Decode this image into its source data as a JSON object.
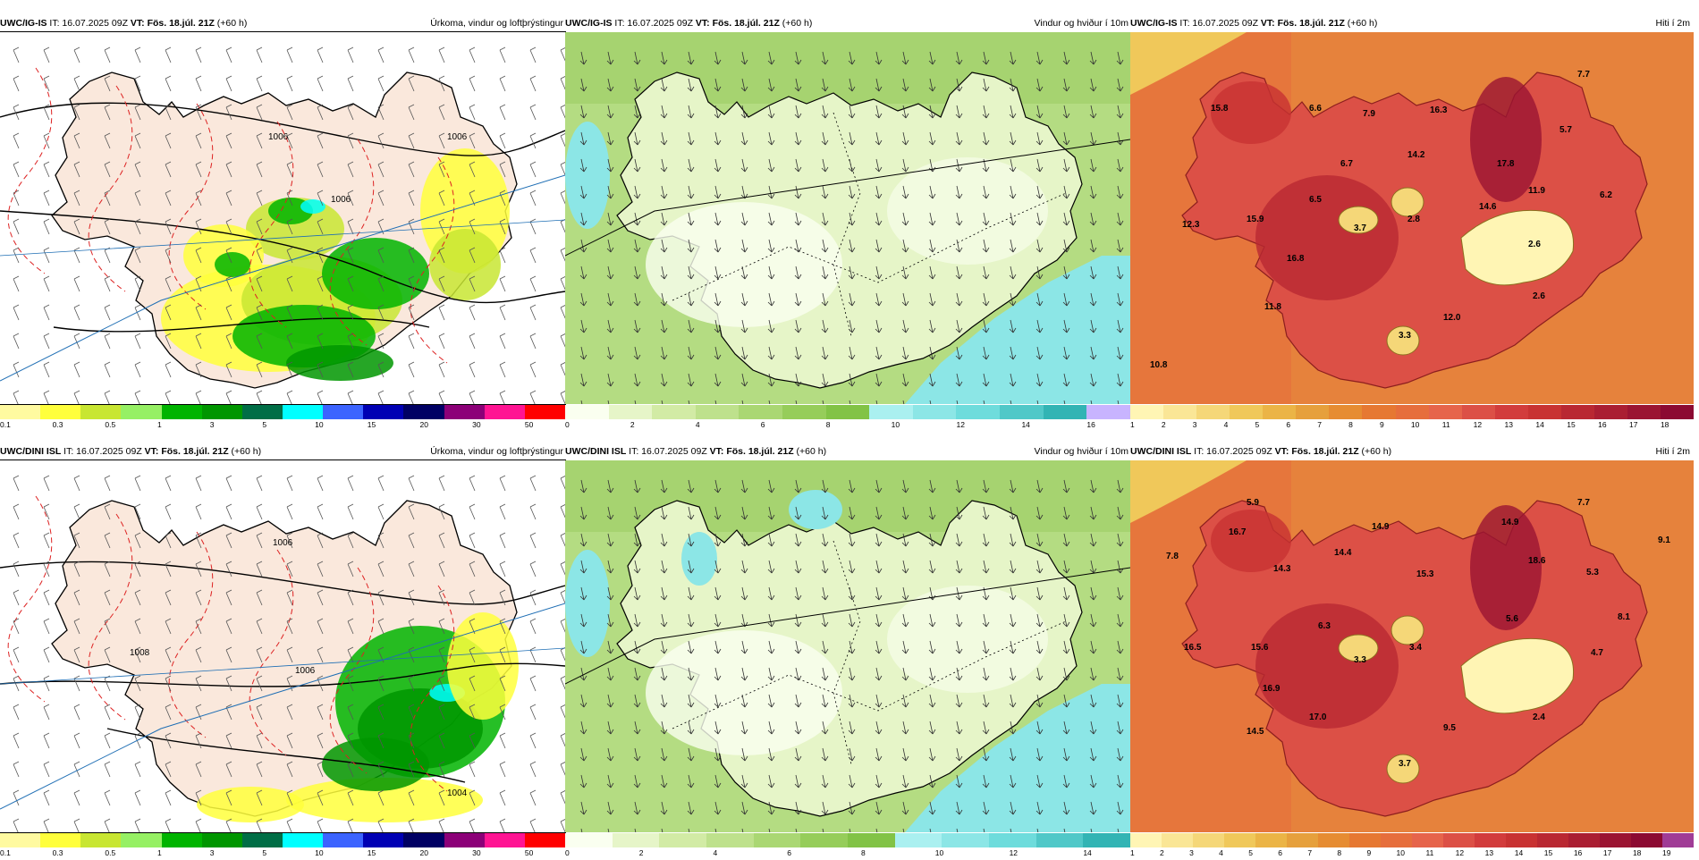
{
  "rows": [
    {
      "model": "UWC/IG-IS",
      "it": "IT: 16.07.2025 09Z",
      "vt": "VT: Fös. 18.júl. 21Z",
      "lead": "(+60 h)",
      "temp_labels": [
        "15.8",
        "6.6",
        "7.9",
        "16.3",
        "7.7",
        "14.2",
        "6.7",
        "5.7",
        "17.8",
        "11.9",
        "6.2",
        "6.5",
        "14.6",
        "12.3",
        "15.9",
        "3.7",
        "2.8",
        "2.6",
        "16.8",
        "2.6",
        "11.8",
        "12.0",
        "3.3",
        "10.8"
      ],
      "precip_isobar_labels": [
        "1006",
        "1006",
        "1006"
      ]
    },
    {
      "model": "UWC/DINI ISL",
      "it": "IT: 16.07.2025 09Z",
      "vt": "VT: Fös. 18.júl. 21Z",
      "lead": "(+60 h)",
      "temp_labels": [
        "5.9",
        "7.7",
        "14.9",
        "16.7",
        "14.9",
        "9.1",
        "7.8",
        "14.4",
        "18.6",
        "14.3",
        "5.3",
        "15.3",
        "8.1",
        "6.3",
        "5.6",
        "16.5",
        "15.6",
        "3.4",
        "3.3",
        "4.7",
        "16.9",
        "17.0",
        "9.5",
        "2.4",
        "14.5",
        "3.7"
      ],
      "precip_isobar_labels": [
        "1006",
        "1008",
        "1006",
        "1004"
      ]
    }
  ],
  "panels": {
    "precip": {
      "title": "Úrkoma, vindur og loftþrýstingur",
      "colors": [
        "#fffaa0",
        "#ffff3c",
        "#c8e632",
        "#96f064",
        "#00b400",
        "#009600",
        "#006e46",
        "#00ffff",
        "#3c64ff",
        "#0000b4",
        "#000064",
        "#8c0078",
        "#ff1493",
        "#ff0000"
      ],
      "ticks": [
        "0.1",
        "0.3",
        "0.5",
        "1",
        "3",
        "5",
        "10",
        "15",
        "20",
        "30",
        "50"
      ]
    },
    "wind": {
      "title": "Vindur og hviður í 10m",
      "colors_top": [
        "#fafff0",
        "#e6f5c8",
        "#d2eba5",
        "#bee18c",
        "#aad773",
        "#96cd5a",
        "#82c346",
        "#aaf0f0",
        "#8ce6e6",
        "#6edcdc",
        "#50c8c8",
        "#32b4b4",
        "#c8b4ff"
      ],
      "ticks_top": [
        "0",
        "2",
        "4",
        "6",
        "8",
        "10",
        "12",
        "14",
        "16"
      ],
      "colors_bottom": [
        "#fafff0",
        "#e6f5c8",
        "#d2eba5",
        "#bee18c",
        "#aad773",
        "#96cd5a",
        "#82c346",
        "#aaf0f0",
        "#8ce6e6",
        "#6edcdc",
        "#50c8c8",
        "#32b4b4"
      ],
      "ticks_bottom": [
        "0",
        "2",
        "4",
        "6",
        "8",
        "10",
        "12",
        "14"
      ]
    },
    "temp": {
      "title": "Hiti í 2m",
      "colors_top": [
        "#fff5b4",
        "#fae696",
        "#f5d778",
        "#f0c85a",
        "#ebb446",
        "#e6a03c",
        "#e68c32",
        "#e67832",
        "#e66e3c",
        "#e6644b",
        "#dc5046",
        "#d23c3c",
        "#c83232",
        "#b92832",
        "#aa1e32",
        "#9b1432",
        "#8c0a32"
      ],
      "ticks_top": [
        "1",
        "2",
        "3",
        "4",
        "5",
        "6",
        "7",
        "8",
        "9",
        "10",
        "11",
        "12",
        "13",
        "14",
        "15",
        "16",
        "17",
        "18"
      ],
      "colors_bottom": [
        "#fff5b4",
        "#fae696",
        "#f5d778",
        "#f0c85a",
        "#ebb446",
        "#e6a03c",
        "#e68c32",
        "#e67832",
        "#e66e3c",
        "#e6644b",
        "#dc5046",
        "#d23c3c",
        "#c83232",
        "#b92832",
        "#aa1e32",
        "#9b1432",
        "#8c0a32",
        "#a03c96"
      ],
      "ticks_bottom": [
        "1",
        "2",
        "3",
        "4",
        "5",
        "6",
        "7",
        "8",
        "9",
        "10",
        "11",
        "12",
        "13",
        "14",
        "15",
        "16",
        "17",
        "18",
        "19"
      ]
    }
  }
}
